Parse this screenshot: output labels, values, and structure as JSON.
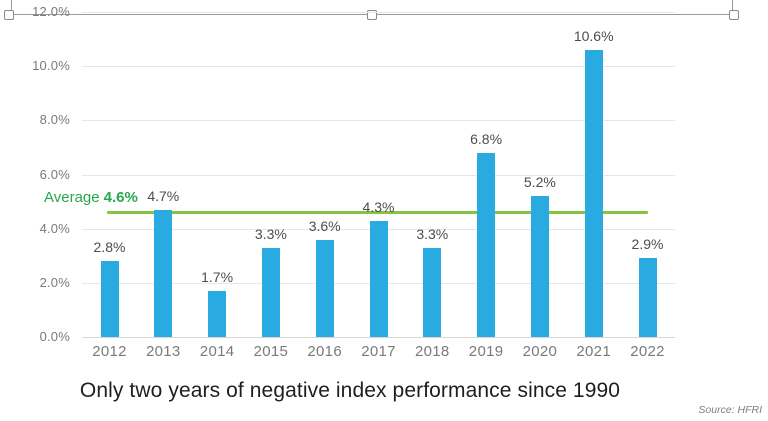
{
  "chart_data": {
    "type": "bar",
    "title": "Only two years of negative index performance since 1990",
    "xlabel": "",
    "ylabel": "",
    "categories": [
      "2012",
      "2013",
      "2014",
      "2015",
      "2016",
      "2017",
      "2018",
      "2019",
      "2020",
      "2021",
      "2022"
    ],
    "values": [
      2.8,
      4.7,
      1.7,
      3.3,
      3.6,
      4.3,
      3.3,
      6.8,
      5.2,
      10.6,
      2.9
    ],
    "value_labels": [
      "2.8%",
      "4.7%",
      "1.7%",
      "3.3%",
      "3.6%",
      "4.3%",
      "3.3%",
      "6.8%",
      "5.2%",
      "10.6%",
      "2.9%"
    ],
    "ylim": [
      0,
      12
    ],
    "ytick_labels": [
      "0.0%",
      "2.0%",
      "4.0%",
      "6.0%",
      "8.0%",
      "10.0%",
      "12.0%"
    ],
    "grid": true,
    "legend": "none",
    "average_line": {
      "value": 4.6,
      "label_prefix": "Average",
      "label_value": "4.6%"
    }
  },
  "source_note": "Source: HFRI",
  "colors": {
    "bar": "#29ABE2",
    "average_line": "#84C441",
    "average_text": "#27A84D",
    "grid": "#E7E7E7",
    "axis_line": "#D8D8D8",
    "tick_text": "#7A7A7A",
    "value_label_text": "#4D4D4D",
    "title_text": "#1E1E1E",
    "source_text": "#7F7F7F"
  }
}
